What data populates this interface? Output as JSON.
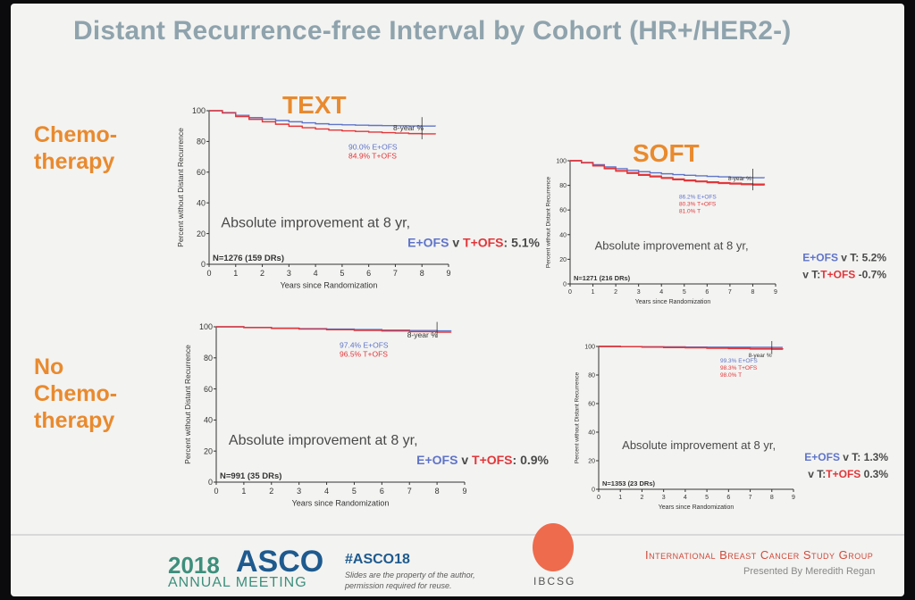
{
  "slide": {
    "title": "Distant Recurrence-free Interval by Cohort (HR+/HER2-)",
    "row_labels": {
      "chemo": [
        "Chemo-",
        "therapy"
      ],
      "nochemo": [
        "No",
        "Chemo-",
        "therapy"
      ]
    },
    "cohorts": {
      "text": "TEXT",
      "soft": "SOFT"
    }
  },
  "footer": {
    "year": "2018",
    "org": "ASCO",
    "meeting": "ANNUAL MEETING",
    "hashtag": "#ASCO18",
    "note": "Slides are the property of the author, permission required for reuse.",
    "logo_text": "IBCSG",
    "group": "International Breast Cancer Study Group",
    "presenter": "Presented By Meredith Regan"
  },
  "colors": {
    "blue": "#5f74c9",
    "red": "#e2363a",
    "orange": "#e98a2e",
    "title": "#8fa3ad"
  },
  "chart_data": [
    {
      "id": "text-chemo",
      "type": "line",
      "cohort": "TEXT",
      "subgroup": "Chemotherapy",
      "xlabel": "Years since Randomization",
      "ylabel": "Percent without Distant Recurrence",
      "xlim": [
        0,
        9
      ],
      "ylim": [
        0,
        100
      ],
      "xticks": [
        0,
        1,
        2,
        3,
        4,
        5,
        6,
        7,
        8,
        9
      ],
      "yticks": [
        0,
        20,
        40,
        60,
        80,
        100
      ],
      "marker_label": "8-year %",
      "n_label": "N=1276 (159 DRs)",
      "improvement_text": "Absolute improvement at 8 yr,",
      "comparisons": [
        {
          "a": "E+OFS",
          "v": " v ",
          "b": "T+OFS",
          "value": ": 5.1%"
        }
      ],
      "series": [
        {
          "name": "E+OFS",
          "color": "#5f74c9",
          "endpoint_label": "90.0% E+OFS",
          "x": [
            0,
            0.5,
            1,
            1.5,
            2,
            2.5,
            3,
            3.5,
            4,
            4.5,
            5,
            5.5,
            6,
            6.5,
            7,
            7.5,
            8,
            8.5
          ],
          "y": [
            100,
            98.8,
            97,
            95.5,
            94.5,
            93.6,
            92.8,
            92.1,
            91.5,
            91,
            90.8,
            90.6,
            90.4,
            90.3,
            90.2,
            90.1,
            90.0,
            89.8
          ]
        },
        {
          "name": "T+OFS",
          "color": "#e2363a",
          "endpoint_label": "84.9% T+OFS",
          "x": [
            0,
            0.5,
            1,
            1.5,
            2,
            2.5,
            3,
            3.5,
            4,
            4.5,
            5,
            5.5,
            6,
            6.5,
            7,
            7.5,
            8,
            8.5
          ],
          "y": [
            100,
            98.5,
            96.2,
            94.4,
            92.8,
            91.2,
            89.9,
            88.9,
            88.1,
            87.4,
            86.9,
            86.5,
            86.1,
            85.7,
            85.4,
            85.1,
            84.9,
            84.6
          ]
        }
      ]
    },
    {
      "id": "soft-chemo",
      "type": "line",
      "cohort": "SOFT",
      "subgroup": "Chemotherapy",
      "xlabel": "Years since Randomization",
      "ylabel": "Percent without Distant Recurrence",
      "xlim": [
        0,
        9
      ],
      "ylim": [
        0,
        100
      ],
      "xticks": [
        0,
        1,
        2,
        3,
        4,
        5,
        6,
        7,
        8,
        9
      ],
      "yticks": [
        0,
        20,
        40,
        60,
        80,
        100
      ],
      "marker_label": "8-year %",
      "n_label": "N=1271 (216 DRs)",
      "improvement_text": "Absolute improvement at 8 yr,",
      "comparisons": [
        {
          "a": "E+OFS",
          "v": " v T:",
          "b": "",
          "value": "  5.2%"
        },
        {
          "a": "",
          "v": " v T:",
          "b": "T+OFS",
          "value": "  -0.7%"
        }
      ],
      "series": [
        {
          "name": "E+OFS",
          "color": "#5f74c9",
          "endpoint_label": "86.2% E+OFS",
          "x": [
            0,
            0.5,
            1,
            1.5,
            2,
            2.5,
            3,
            3.5,
            4,
            4.5,
            5,
            5.5,
            6,
            6.5,
            7,
            7.5,
            8,
            8.5
          ],
          "y": [
            100,
            98.6,
            96.8,
            95,
            93.5,
            92.2,
            91.1,
            90.2,
            89.4,
            88.7,
            88.2,
            87.7,
            87.3,
            86.9,
            86.6,
            86.4,
            86.2,
            86.0
          ]
        },
        {
          "name": "T+OFS",
          "color": "#e2363a",
          "endpoint_label": "80.3% T+OFS",
          "x": [
            0,
            0.5,
            1,
            1.5,
            2,
            2.5,
            3,
            3.5,
            4,
            4.5,
            5,
            5.5,
            6,
            6.5,
            7,
            7.5,
            8,
            8.5
          ],
          "y": [
            100,
            98.2,
            95.8,
            93.5,
            91.5,
            89.7,
            88.2,
            86.9,
            85.7,
            84.6,
            83.7,
            82.9,
            82.2,
            81.6,
            81.1,
            80.7,
            80.3,
            80.0
          ]
        },
        {
          "name": "T",
          "color": "#e2363a",
          "endpoint_label": "81.0% T",
          "x": [
            0,
            0.5,
            1,
            1.5,
            2,
            2.5,
            3,
            3.5,
            4,
            4.5,
            5,
            5.5,
            6,
            6.5,
            7,
            7.5,
            8,
            8.5
          ],
          "y": [
            100,
            98.4,
            96.1,
            93.9,
            92,
            90.3,
            88.8,
            87.5,
            86.3,
            85.2,
            84.3,
            83.5,
            82.8,
            82.2,
            81.7,
            81.3,
            81.0,
            80.7
          ]
        }
      ]
    },
    {
      "id": "text-nochemo",
      "type": "line",
      "cohort": "TEXT",
      "subgroup": "No Chemotherapy",
      "xlabel": "Years since Randomization",
      "ylabel": "Percent without Distant Recurrence",
      "xlim": [
        0,
        9
      ],
      "ylim": [
        0,
        100
      ],
      "xticks": [
        0,
        1,
        2,
        3,
        4,
        5,
        6,
        7,
        8,
        9
      ],
      "yticks": [
        0,
        20,
        40,
        60,
        80,
        100
      ],
      "marker_label": "8-year %",
      "n_label": "N=991 (35 DRs)",
      "improvement_text": "Absolute improvement at 8 yr,",
      "comparisons": [
        {
          "a": "E+OFS",
          "v": " v ",
          "b": "T+OFS",
          "value": ": 0.9%"
        }
      ],
      "series": [
        {
          "name": "E+OFS",
          "color": "#5f74c9",
          "endpoint_label": "97.4% E+OFS",
          "x": [
            0,
            1,
            2,
            3,
            4,
            5,
            6,
            7,
            8,
            8.5
          ],
          "y": [
            100,
            99.6,
            99.2,
            98.8,
            98.5,
            98.2,
            97.9,
            97.6,
            97.4,
            97.2
          ]
        },
        {
          "name": "T+OFS",
          "color": "#e2363a",
          "endpoint_label": "96.5% T+OFS",
          "x": [
            0,
            1,
            2,
            3,
            4,
            5,
            6,
            7,
            8,
            8.5
          ],
          "y": [
            100,
            99.5,
            99,
            98.5,
            98.1,
            97.7,
            97.3,
            96.9,
            96.5,
            96.2
          ]
        }
      ]
    },
    {
      "id": "soft-nochemo",
      "type": "line",
      "cohort": "SOFT",
      "subgroup": "No Chemotherapy",
      "xlabel": "Years since Randomization",
      "ylabel": "Percent without Distant Recurrence",
      "xlim": [
        0,
        9
      ],
      "ylim": [
        0,
        100
      ],
      "xticks": [
        0,
        1,
        2,
        3,
        4,
        5,
        6,
        7,
        8,
        9
      ],
      "yticks": [
        0,
        20,
        40,
        60,
        80,
        100
      ],
      "marker_label": "8-year %",
      "n_label": "N=1353 (23 DRs)",
      "improvement_text": "Absolute improvement at 8 yr,",
      "comparisons": [
        {
          "a": "E+OFS",
          "v": " v T:",
          "b": "",
          "value": "  1.3%"
        },
        {
          "a": "",
          "v": " v T:",
          "b": "T+OFS",
          "value": "  0.3%"
        }
      ],
      "series": [
        {
          "name": "E+OFS",
          "color": "#5f74c9",
          "endpoint_label": "99.3% E+OFS",
          "x": [
            0,
            1,
            2,
            3,
            4,
            5,
            6,
            7,
            8,
            8.5
          ],
          "y": [
            100,
            99.9,
            99.8,
            99.7,
            99.6,
            99.5,
            99.5,
            99.4,
            99.3,
            99.3
          ]
        },
        {
          "name": "T+OFS",
          "color": "#e2363a",
          "endpoint_label": "98.3% T+OFS",
          "x": [
            0,
            1,
            2,
            3,
            4,
            5,
            6,
            7,
            8,
            8.5
          ],
          "y": [
            100,
            99.8,
            99.6,
            99.4,
            99.2,
            99,
            98.8,
            98.5,
            98.3,
            98.2
          ]
        },
        {
          "name": "T",
          "color": "#e2363a",
          "endpoint_label": "98.0% T",
          "x": [
            0,
            1,
            2,
            3,
            4,
            5,
            6,
            7,
            8,
            8.5
          ],
          "y": [
            100,
            99.8,
            99.5,
            99.2,
            99,
            98.7,
            98.5,
            98.2,
            98.0,
            97.9
          ]
        }
      ]
    }
  ]
}
